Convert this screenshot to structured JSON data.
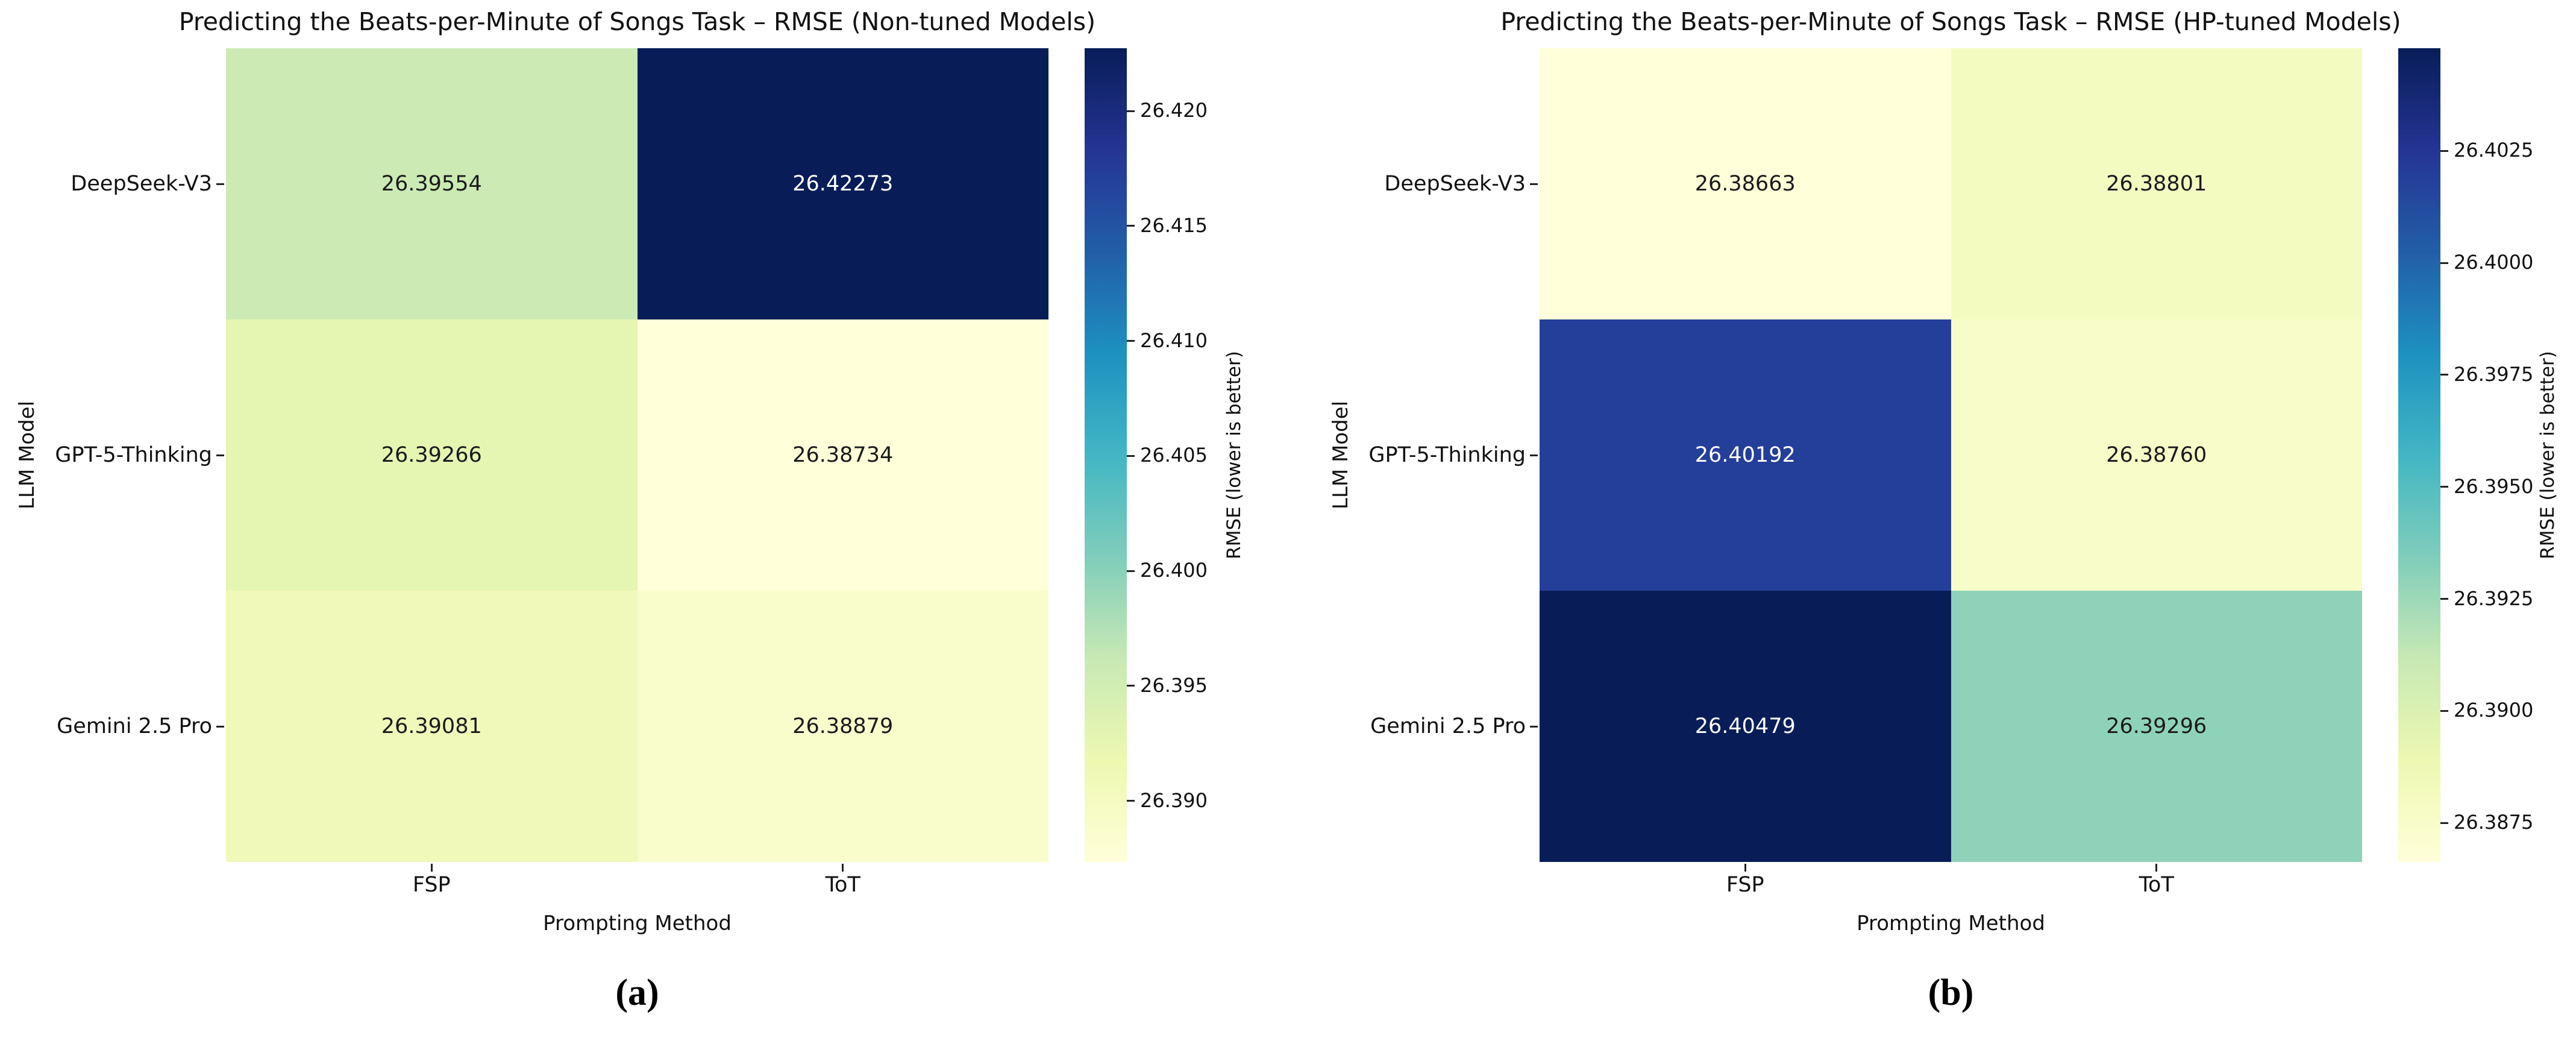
{
  "page": {
    "captions": {
      "a": "(a)",
      "b": "(b)"
    }
  },
  "colormap": {
    "name": "YlGnBu",
    "stops": [
      "#ffffd9",
      "#edf8b1",
      "#c7e9b4",
      "#7fcdbb",
      "#41b6c4",
      "#1d91c0",
      "#225ea8",
      "#253494",
      "#081d58"
    ]
  },
  "chart_data": [
    {
      "type": "heatmap",
      "title": "Predicting the Beats-per-Minute of Songs Task – RMSE (Non-tuned Models)",
      "xlabel": "Prompting Method",
      "ylabel": "LLM Model",
      "x_categories": [
        "FSP",
        "ToT"
      ],
      "y_categories": [
        "DeepSeek-V3",
        "GPT-5-Thinking",
        "Gemini 2.5 Pro"
      ],
      "values": [
        [
          26.39554,
          26.42273
        ],
        [
          26.39266,
          26.38734
        ],
        [
          26.39081,
          26.38879
        ]
      ],
      "cell_colors": [
        [
          "#ccebb4",
          "#081d58"
        ],
        [
          "#e5f5b2",
          "#ffffd9"
        ],
        [
          "#f1f9ba",
          "#f9fdcc"
        ]
      ],
      "text_colors": [
        [
          "#1a1a1a",
          "#ffffff"
        ],
        [
          "#1a1a1a",
          "#1a1a1a"
        ],
        [
          "#1a1a1a",
          "#1a1a1a"
        ]
      ],
      "colorbar": {
        "label": "RMSE (lower is better)",
        "vmin": 26.38734,
        "vmax": 26.42273,
        "ticks": [
          "26.420",
          "26.415",
          "26.410",
          "26.405",
          "26.400",
          "26.395",
          "26.390"
        ]
      }
    },
    {
      "type": "heatmap",
      "title": "Predicting the Beats-per-Minute of Songs Task – RMSE (HP-tuned Models)",
      "xlabel": "Prompting Method",
      "ylabel": "LLM Model",
      "x_categories": [
        "FSP",
        "ToT"
      ],
      "y_categories": [
        "DeepSeek-V3",
        "GPT-5-Thinking",
        "Gemini 2.5 Pro"
      ],
      "values": [
        [
          26.38663,
          26.38801
        ],
        [
          26.40192,
          26.3876
        ],
        [
          26.40479,
          26.39296
        ]
      ],
      "cell_colors": [
        [
          "#ffffd9",
          "#f4fbc1"
        ],
        [
          "#243f99",
          "#f7fcc8"
        ],
        [
          "#081d58",
          "#8ed3b9"
        ]
      ],
      "text_colors": [
        [
          "#1a1a1a",
          "#1a1a1a"
        ],
        [
          "#ffffff",
          "#1a1a1a"
        ],
        [
          "#ffffff",
          "#1a1a1a"
        ]
      ],
      "colorbar": {
        "label": "RMSE (lower is better)",
        "vmin": 26.38663,
        "vmax": 26.40479,
        "ticks": [
          "26.4025",
          "26.4000",
          "26.3975",
          "26.3950",
          "26.3925",
          "26.3900",
          "26.3875"
        ]
      }
    }
  ]
}
